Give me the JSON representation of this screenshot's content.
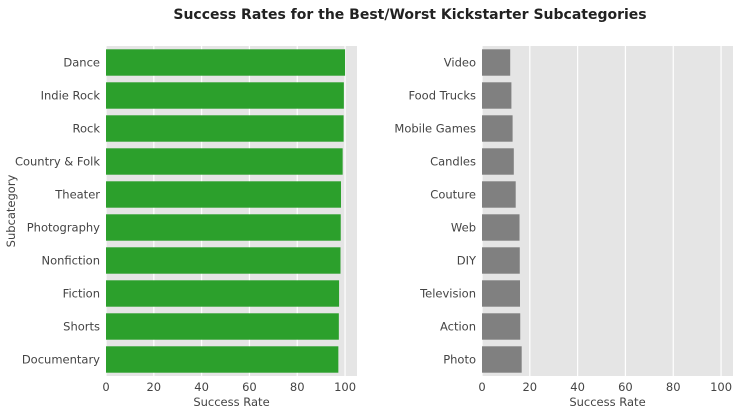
{
  "figure": {
    "title": "Success Rates for the Best/Worst Kickstarter Subcategories"
  },
  "chart_data": [
    {
      "type": "bar",
      "orientation": "horizontal",
      "panel": "left",
      "title": "",
      "xlabel": "Success Rate",
      "ylabel": "Subcategory",
      "xlim": [
        0,
        105
      ],
      "xticks": [
        0,
        20,
        40,
        60,
        80,
        100
      ],
      "grid": true,
      "bar_color": "#2ca02c",
      "categories": [
        "Dance",
        "Indie Rock",
        "Rock",
        "Country & Folk",
        "Theater",
        "Photography",
        "Nonfiction",
        "Fiction",
        "Shorts",
        "Documentary"
      ],
      "values": [
        100,
        99.5,
        99.4,
        99.0,
        98.3,
        98.2,
        98.1,
        97.5,
        97.4,
        97.2
      ]
    },
    {
      "type": "bar",
      "orientation": "horizontal",
      "panel": "right",
      "title": "",
      "xlabel": "Success Rate",
      "ylabel": "",
      "xlim": [
        0,
        105
      ],
      "xticks": [
        0,
        20,
        40,
        60,
        80,
        100
      ],
      "grid": true,
      "bar_color": "#808080",
      "categories": [
        "Video",
        "Food Trucks",
        "Mobile Games",
        "Candles",
        "Couture",
        "Web",
        "DIY",
        "Television",
        "Action",
        "Photo"
      ],
      "values": [
        11.8,
        12.3,
        12.8,
        13.3,
        14.1,
        15.7,
        15.8,
        15.9,
        16.0,
        16.6
      ]
    }
  ]
}
